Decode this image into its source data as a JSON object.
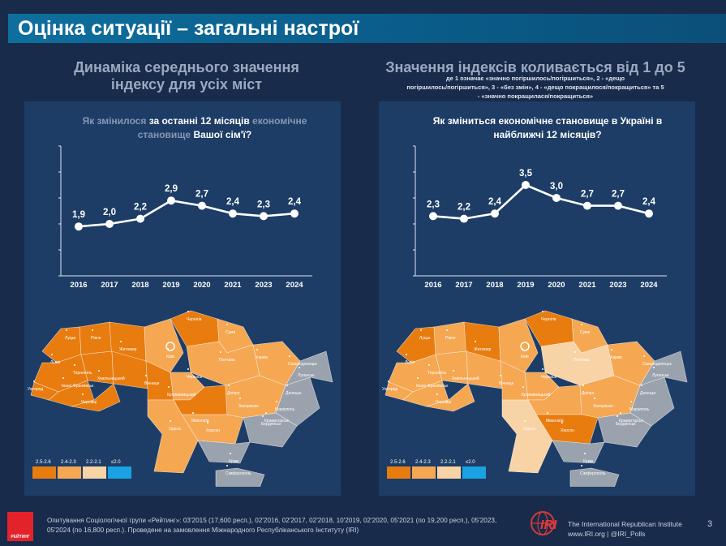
{
  "slide_title": "Оцінка ситуації – загальні настрої",
  "left_heading_line1": "Динаміка середнього значення",
  "left_heading_line2": "індексу для усіх міст",
  "right_heading": "Значення індексів коливається від 1 до 5",
  "right_note_line1": "де 1 означає «значно погіршилось/погіршиться», 2 - «дещо",
  "right_note_line2": "погіршилось/погіршиться», 3 - «без змін», 4 - «дещо покращилося/покращиться» та 5",
  "right_note_line3": "- «значно покращилася/покращиться»",
  "left_question": {
    "part1": "Як змінилося ",
    "part2": "за останні 12 місяців",
    "part3": " економічне",
    "part4": "становище ",
    "part5": "Вашої сім'ї?"
  },
  "right_question": {
    "line1": "Як зміниться економічне становище в Україні в",
    "line2": "найближчі 12 місяців?"
  },
  "chart_data": [
    {
      "type": "line",
      "title": "Як змінилося за останні 12 місяців економічне становище Вашої сім'ї?",
      "categories": [
        "2016",
        "2017",
        "2018",
        "2019",
        "2020",
        "2021",
        "2023",
        "2024"
      ],
      "values": [
        1.9,
        2.0,
        2.2,
        2.9,
        2.7,
        2.4,
        2.3,
        2.4
      ],
      "labels": [
        "1,9",
        "2,0",
        "2,2",
        "2,9",
        "2,7",
        "2,4",
        "2,3",
        "2,4"
      ],
      "ylim": [
        0,
        5
      ]
    },
    {
      "type": "line",
      "title": "Як зміниться економічне становище в Україні в найближчі 12 місяців?",
      "categories": [
        "2016",
        "2017",
        "2018",
        "2019",
        "2020",
        "2021",
        "2023",
        "2024"
      ],
      "values": [
        2.3,
        2.2,
        2.4,
        3.5,
        3.0,
        2.7,
        2.7,
        2.4
      ],
      "labels": [
        "2,3",
        "2,2",
        "2,4",
        "3,5",
        "3,0",
        "2,7",
        "2,7",
        "2,4"
      ],
      "ylim": [
        0,
        5
      ]
    }
  ],
  "map_cities": {
    "lutsk": "Луцьк",
    "rivne": "Рівне",
    "zhytomyr": "Житомир",
    "chernihiv": "Чернігів",
    "sumy": "Суми",
    "kyiv": "Київ",
    "poltava": "Полтава",
    "kharkiv": "Харків",
    "severodonetsk": "Сєвєродонецьк",
    "luhansk": "Луганськ",
    "lviv": "Львів",
    "ternopil": "Тернопіль",
    "khmelnytskyi": "Хмельницький",
    "cherkasy": "Черкаси",
    "vinnytsia": "Вінниця",
    "uzhhorod": "Ужгород",
    "ivano_frankivsk": "Івано-Франківськ",
    "chernivtsi": "Чернівці",
    "kropyvnytskyi": "Кропивницький",
    "dnipro": "Дніпро",
    "zaporizhzhia": "Запоріжжя",
    "donetsk": "Донецьк",
    "mykolaiv": "Миколаїв",
    "kherson": "Херсон",
    "odesa": "Одеса",
    "mariupol": "Маріуполь",
    "crimea": "Крим",
    "simferopol": "Сімферополь",
    "kramatorsk": "Краматорськ",
    "berdiansk": "Бердянськ"
  },
  "legend": [
    {
      "label": "2.5-2.6",
      "color": "#e87c0f"
    },
    {
      "label": "2.4-2.3",
      "color": "#f5a752"
    },
    {
      "label": "2.2-2.1",
      "color": "#f8d3a6"
    },
    {
      "label": "≤2.0",
      "color": "#1aa2e2"
    }
  ],
  "colors": {
    "dark_orange": "#e87c0f",
    "mid_orange": "#f0922f",
    "light_orange": "#f5a752",
    "pale_orange": "#f8d3a6",
    "gray": "#9aa2ad",
    "blue": "#1aa2e2"
  },
  "footer": {
    "line1": "Опитування Соціологічної групи «Рейтинг»: 03'2015 (17,600 респ.), 02'2016, 02'2017, 02'2018, 10'2019, 02'2020, 05'2021 (по 19,200 респ.), 05'2023,",
    "line2": "05'2024 (по 16,800 респ.). Проведене на замовлення Міжнародного Республіканського Інституту (IRI)"
  },
  "rating_logo_text": "РЕЙТИНГ",
  "iri": {
    "logo_text": "IRI",
    "line1": "The International Republican Institute",
    "line2": "www.IRI.org | @IRI_Polls"
  },
  "page_number": "3"
}
